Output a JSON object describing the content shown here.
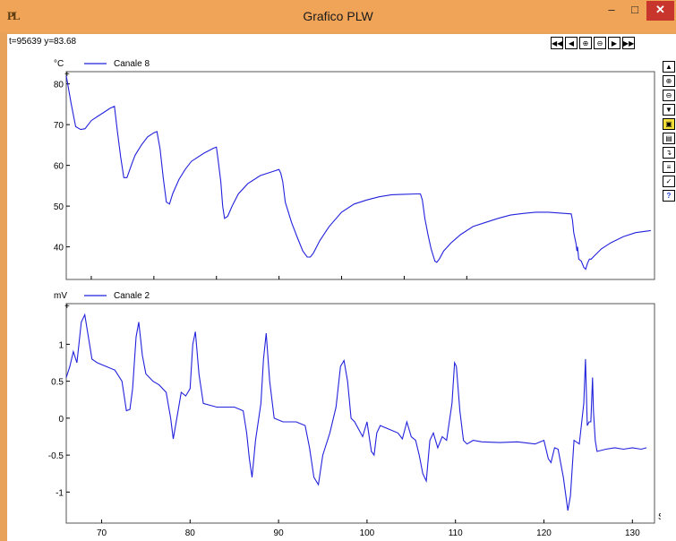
{
  "window": {
    "title": "Grafico PLW",
    "app_icon": "PL",
    "minimize_glyph": "–",
    "maximize_glyph": "□",
    "close_glyph": "✕"
  },
  "readout": "t=95639 y=83.68",
  "nav_buttons": [
    {
      "icon": "rewind-icon",
      "glyph": "◀◀"
    },
    {
      "icon": "step-back-icon",
      "glyph": "◀"
    },
    {
      "icon": "zoom-in-icon",
      "glyph": "⊕"
    },
    {
      "icon": "zoom-out-icon",
      "glyph": "⊖"
    },
    {
      "icon": "step-forward-icon",
      "glyph": "▶"
    },
    {
      "icon": "fast-forward-icon",
      "glyph": "▶▶"
    }
  ],
  "side_buttons": [
    {
      "icon": "scroll-up-icon",
      "glyph": "▲"
    },
    {
      "icon": "zoom-in-icon",
      "glyph": "⊕"
    },
    {
      "icon": "zoom-out-icon",
      "glyph": "⊖"
    },
    {
      "icon": "scroll-down-icon",
      "glyph": "▼"
    },
    {
      "icon": "open-folder-icon",
      "glyph": "▣"
    },
    {
      "icon": "save-icon",
      "glyph": "▤"
    },
    {
      "icon": "export-icon",
      "glyph": "↴"
    },
    {
      "icon": "channels-icon",
      "glyph": "≡"
    },
    {
      "icon": "check-icon",
      "glyph": "✓"
    },
    {
      "icon": "help-icon",
      "glyph": "?"
    }
  ],
  "colors": {
    "series": "#2222dd",
    "close": "#c7352c",
    "titlebar": "#f0a458"
  },
  "chart_data": [
    {
      "type": "line",
      "ylabel": "°C",
      "xlabel": "",
      "series": [
        {
          "name": "Canale 8",
          "points": [
            [
              66,
              82
            ],
            [
              66.8,
              75
            ],
            [
              67.5,
              69.5
            ],
            [
              68.3,
              68.8
            ],
            [
              69,
              69
            ],
            [
              70,
              71
            ],
            [
              71,
              72
            ],
            [
              72,
              73
            ],
            [
              73,
              74
            ],
            [
              73.7,
              74.5
            ],
            [
              74.2,
              68
            ],
            [
              74.7,
              62
            ],
            [
              75.2,
              57
            ],
            [
              75.7,
              57
            ],
            [
              76.5,
              60.5
            ],
            [
              77,
              62.5
            ],
            [
              78,
              65
            ],
            [
              79,
              67
            ],
            [
              80,
              68
            ],
            [
              80.5,
              68.3
            ],
            [
              81,
              64
            ],
            [
              81.5,
              57
            ],
            [
              82,
              51
            ],
            [
              82.5,
              50.5
            ],
            [
              83,
              53
            ],
            [
              84,
              56.5
            ],
            [
              85,
              59
            ],
            [
              86,
              61
            ],
            [
              88,
              63
            ],
            [
              89.5,
              64.2
            ],
            [
              90,
              64.5
            ],
            [
              90.3,
              61
            ],
            [
              90.7,
              56
            ],
            [
              91,
              50
            ],
            [
              91.3,
              47
            ],
            [
              91.8,
              47.5
            ],
            [
              92.5,
              50
            ],
            [
              93.5,
              53
            ],
            [
              95,
              55.5
            ],
            [
              97,
              57.5
            ],
            [
              99,
              58.5
            ],
            [
              100,
              59
            ],
            [
              100.3,
              58
            ],
            [
              100.6,
              56
            ],
            [
              101,
              51
            ],
            [
              102,
              46
            ],
            [
              103,
              42
            ],
            [
              103.8,
              39
            ],
            [
              104.5,
              37.5
            ],
            [
              105,
              37.5
            ],
            [
              105.5,
              38.5
            ],
            [
              106.5,
              41.5
            ],
            [
              108,
              45
            ],
            [
              110,
              48.5
            ],
            [
              112,
              50.5
            ],
            [
              114,
              51.5
            ],
            [
              116,
              52.3
            ],
            [
              118,
              52.8
            ],
            [
              120,
              52.9
            ],
            [
              122,
              53
            ],
            [
              122.6,
              53
            ],
            [
              122.9,
              51.5
            ],
            [
              123.3,
              47
            ],
            [
              123.8,
              43
            ],
            [
              124.3,
              39.5
            ],
            [
              124.9,
              36.5
            ],
            [
              125.2,
              36.2
            ],
            [
              125.6,
              37
            ],
            [
              126.3,
              39
            ],
            [
              127.5,
              41
            ],
            [
              129,
              43
            ],
            [
              131,
              45
            ],
            [
              133,
              46
            ],
            [
              135,
              47
            ],
            [
              137,
              47.8
            ],
            [
              139,
              48.2
            ],
            [
              141,
              48.5
            ],
            [
              143,
              48.5
            ],
            [
              145,
              48.3
            ],
            [
              146.7,
              48.1
            ],
            [
              146.9,
              46.5
            ],
            [
              147.1,
              43.5
            ],
            [
              147.3,
              42
            ],
            [
              147.5,
              40.5
            ],
            [
              147.6,
              39
            ],
            [
              147.7,
              40
            ],
            [
              147.9,
              37
            ],
            [
              148.3,
              36.5
            ],
            [
              148.7,
              35
            ],
            [
              149,
              34.5
            ],
            [
              149.3,
              36
            ],
            [
              149.6,
              37
            ],
            [
              149.9,
              37
            ],
            [
              150.2,
              37.5
            ],
            [
              151.5,
              39.5
            ],
            [
              153,
              41
            ],
            [
              155,
              42.5
            ],
            [
              157,
              43.5
            ],
            [
              159.4,
              44
            ]
          ]
        }
      ],
      "x_ticks": [
        70,
        80,
        90,
        100,
        110,
        120,
        130
      ],
      "y_ticks": [
        "40",
        "50",
        "60",
        "70",
        "80"
      ],
      "xlim": [
        66,
        160
      ],
      "ylim": [
        32,
        83
      ]
    },
    {
      "type": "line",
      "ylabel": "mV",
      "xlabel": "Sec",
      "series": [
        {
          "name": "Canale 2",
          "points": [
            [
              66,
              0.55
            ],
            [
              66.4,
              0.7
            ],
            [
              66.8,
              0.9
            ],
            [
              67.2,
              0.75
            ],
            [
              67.7,
              1.3
            ],
            [
              68.1,
              1.4
            ],
            [
              68.5,
              1.1
            ],
            [
              68.9,
              0.8
            ],
            [
              69.5,
              0.75
            ],
            [
              70.5,
              0.7
            ],
            [
              71.5,
              0.65
            ],
            [
              72.3,
              0.5
            ],
            [
              72.8,
              0.1
            ],
            [
              73.2,
              0.12
            ],
            [
              73.5,
              0.4
            ],
            [
              73.9,
              1.1
            ],
            [
              74.2,
              1.3
            ],
            [
              74.6,
              0.85
            ],
            [
              75,
              0.6
            ],
            [
              75.8,
              0.5
            ],
            [
              76.5,
              0.45
            ],
            [
              77.3,
              0.35
            ],
            [
              77.8,
              0
            ],
            [
              78.1,
              -0.28
            ],
            [
              78.5,
              0
            ],
            [
              79,
              0.35
            ],
            [
              79.5,
              0.3
            ],
            [
              80,
              0.4
            ],
            [
              80.3,
              1.0
            ],
            [
              80.6,
              1.17
            ],
            [
              81,
              0.6
            ],
            [
              81.5,
              0.2
            ],
            [
              83,
              0.15
            ],
            [
              84,
              0.15
            ],
            [
              85,
              0.15
            ],
            [
              86,
              0.1
            ],
            [
              86.4,
              -0.2
            ],
            [
              86.7,
              -0.55
            ],
            [
              87,
              -0.8
            ],
            [
              87.4,
              -0.3
            ],
            [
              88,
              0.2
            ],
            [
              88.3,
              0.8
            ],
            [
              88.6,
              1.15
            ],
            [
              89,
              0.5
            ],
            [
              89.5,
              0
            ],
            [
              90.5,
              -0.05
            ],
            [
              92,
              -0.05
            ],
            [
              93,
              -0.1
            ],
            [
              93.5,
              -0.4
            ],
            [
              94,
              -0.8
            ],
            [
              94.5,
              -0.9
            ],
            [
              95,
              -0.5
            ],
            [
              95.8,
              -0.2
            ],
            [
              96.5,
              0.15
            ],
            [
              97,
              0.7
            ],
            [
              97.4,
              0.78
            ],
            [
              97.8,
              0.5
            ],
            [
              98.2,
              0
            ],
            [
              98.6,
              -0.05
            ],
            [
              99.5,
              -0.25
            ],
            [
              100,
              -0.05
            ],
            [
              100.5,
              -0.45
            ],
            [
              100.8,
              -0.5
            ],
            [
              101.1,
              -0.2
            ],
            [
              101.5,
              -0.1
            ],
            [
              102.5,
              -0.15
            ],
            [
              103.5,
              -0.2
            ],
            [
              104,
              -0.28
            ],
            [
              104.5,
              -0.05
            ],
            [
              105,
              -0.25
            ],
            [
              105.5,
              -0.3
            ],
            [
              105.9,
              -0.5
            ],
            [
              106.3,
              -0.75
            ],
            [
              106.7,
              -0.85
            ],
            [
              107.1,
              -0.3
            ],
            [
              107.5,
              -0.2
            ],
            [
              108,
              -0.4
            ],
            [
              108.5,
              -0.25
            ],
            [
              109,
              -0.3
            ],
            [
              109.6,
              0.2
            ],
            [
              109.9,
              0.75
            ],
            [
              110.1,
              0.7
            ],
            [
              110.5,
              0.1
            ],
            [
              110.9,
              -0.3
            ],
            [
              111.3,
              -0.35
            ],
            [
              112,
              -0.3
            ],
            [
              113,
              -0.32
            ],
            [
              115,
              -0.33
            ],
            [
              117,
              -0.32
            ],
            [
              119,
              -0.35
            ],
            [
              120,
              -0.3
            ],
            [
              120.5,
              -0.55
            ],
            [
              120.8,
              -0.6
            ],
            [
              121.2,
              -0.4
            ],
            [
              121.6,
              -0.42
            ],
            [
              122.2,
              -0.8
            ],
            [
              122.7,
              -1.25
            ],
            [
              123,
              -1.05
            ],
            [
              123.4,
              -0.3
            ],
            [
              124,
              -0.35
            ],
            [
              124.5,
              0.2
            ],
            [
              124.7,
              0.8
            ],
            [
              124.9,
              -0.1
            ],
            [
              125.1,
              -0.05
            ],
            [
              125.3,
              -0.05
            ],
            [
              125.5,
              0.55
            ],
            [
              125.6,
              0.1
            ],
            [
              125.8,
              -0.3
            ],
            [
              126,
              -0.45
            ],
            [
              127,
              -0.42
            ],
            [
              128,
              -0.4
            ],
            [
              129,
              -0.42
            ],
            [
              130,
              -0.4
            ],
            [
              131,
              -0.42
            ],
            [
              131.6,
              -0.4
            ]
          ]
        }
      ],
      "x_ticks": [
        70,
        80,
        90,
        100,
        110,
        120,
        130
      ],
      "y_ticks": [
        "-1",
        "-0.5",
        "0",
        "0.5",
        "1"
      ],
      "xlim": [
        66,
        132.5
      ],
      "ylim": [
        -1.42,
        1.55
      ]
    }
  ]
}
